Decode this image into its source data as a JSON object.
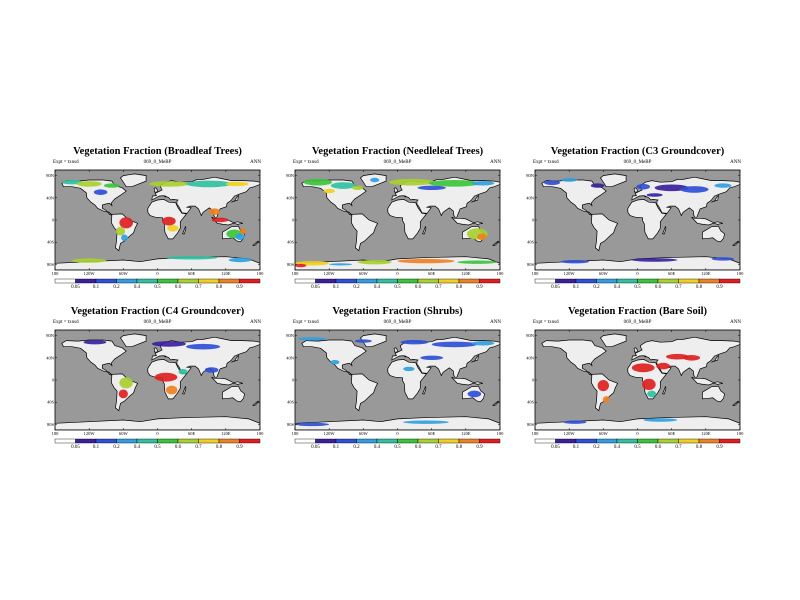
{
  "colorbar": {
    "colors": [
      "#ffffff",
      "#3a1f9e",
      "#2f4fd8",
      "#2f9fe0",
      "#2fc0a0",
      "#3cc43c",
      "#a8d030",
      "#f0d020",
      "#f08020",
      "#e02020"
    ],
    "labels": [
      "0.05",
      "0.1",
      "0.2",
      "0.4",
      "0.5",
      "0.6",
      "0.7",
      "0.8",
      "0.9"
    ]
  },
  "axes": {
    "y_labels": [
      "80N",
      "40N",
      "0",
      "40S",
      "80S"
    ],
    "x_labels": [
      "180",
      "120W",
      "60W",
      "0",
      "60E",
      "120E",
      "180"
    ]
  },
  "panels": [
    {
      "title": "Vegetation Fraction (Broadleaf Trees)",
      "expt": "Expt = txnsd",
      "run": "069_0_MeBP",
      "period": "ANN",
      "colorbar_first": "0.05"
    },
    {
      "title": "Vegetation Fraction (Needleleaf Trees)",
      "expt": "Expt = txnsd",
      "run": "069_0_MeBP",
      "period": "ANN",
      "colorbar_first": "0.05"
    },
    {
      "title": "Vegetation Fraction (C3 Groundcover)",
      "expt": "Expt = txnsd",
      "run": "069_0_MeBP",
      "period": "ANN",
      "colorbar_first": "0.05"
    },
    {
      "title": "Vegetation Fraction (C4 Groundcover)",
      "expt": "Expt = txnsd",
      "run": "069_0_MeBP",
      "period": "ANN",
      "colorbar_first": "0.05"
    },
    {
      "title": "Vegetation Fraction (Shrubs)",
      "expt": "Expt = txnsd",
      "run": "069_0_MeBP",
      "period": "ANN",
      "colorbar_first": "0.05"
    },
    {
      "title": "Vegetation Fraction (Bare Soil)",
      "expt": "Expt = txnsd",
      "run": "069_0_MeBP",
      "period": "ANN",
      "colorbar_first": "0.05"
    }
  ],
  "colors": {
    "ocean": "#999999",
    "land": "#eeeeee",
    "coast": "#000000"
  }
}
